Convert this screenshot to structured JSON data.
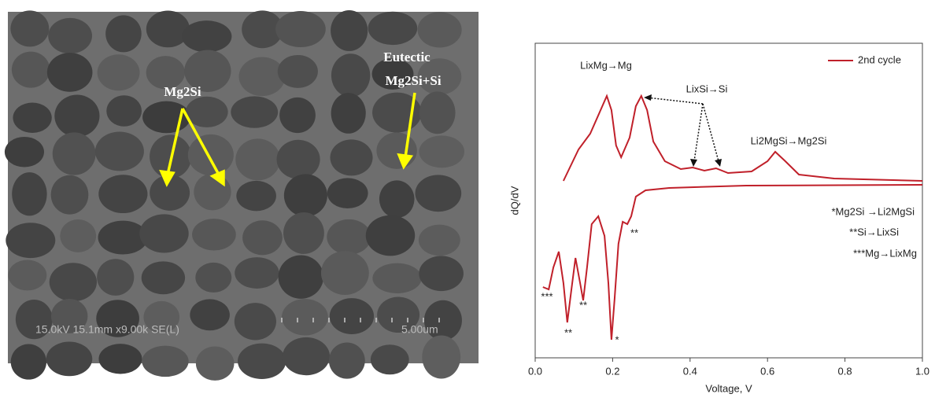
{
  "image": {
    "labels": [
      "Mg2Si",
      "Eutectic",
      "Mg2Si+Si"
    ],
    "info": "15.0kV 15.1mm x9.00k SE(L)",
    "scale": "5.00um"
  },
  "chart_data": {
    "type": "line",
    "xlabel": "Voltage, V",
    "ylabel": "dQ/dV",
    "xlim": [
      0,
      1
    ],
    "ylim": [
      0,
      100
    ],
    "xticks": [
      {
        "value": 0,
        "label": "0.0"
      },
      0.2,
      0.4,
      0.6,
      0.8,
      {
        "value": 1,
        "label": "1.0"
      }
    ],
    "legend": "upper right",
    "series": [
      {
        "name": "2nd cycle",
        "color": "#c0202a",
        "x": [
          0.02,
          0.035,
          0.047,
          0.061,
          0.073,
          0.083,
          0.093,
          0.104,
          0.116,
          0.124,
          0.134,
          0.146,
          0.163,
          0.179,
          0.189,
          0.197,
          0.205,
          0.215,
          0.226,
          0.238,
          0.248,
          0.26,
          0.285,
          0.346,
          0.545,
          1.0,
          null,
          0.073,
          0.112,
          0.142,
          0.169,
          0.185,
          0.197,
          0.209,
          0.222,
          0.244,
          0.26,
          0.274,
          0.289,
          0.305,
          0.335,
          0.376,
          0.407,
          0.437,
          0.467,
          0.498,
          0.559,
          0.6,
          0.62,
          0.646,
          0.681,
          0.772,
          1.0
        ],
        "values": [
          22.5,
          21.75,
          28.75,
          33.75,
          23.75,
          11.25,
          21.25,
          31.75,
          23.75,
          18.25,
          28.75,
          42.5,
          45,
          38.75,
          23.75,
          5.75,
          18.75,
          36.25,
          43.25,
          42.5,
          45,
          51.25,
          53.25,
          54,
          54.75,
          55,
          null,
          56.25,
          66.25,
          71.25,
          78.75,
          83.25,
          78.75,
          67.5,
          63.75,
          70,
          80,
          83.25,
          78.75,
          68.75,
          62.5,
          60,
          60.5,
          59.5,
          60.25,
          58.75,
          59.25,
          62.5,
          65.5,
          62.5,
          58.25,
          57,
          56.25
        ]
      }
    ],
    "annotations": [
      "LixMg→Mg",
      "LixSi→Si",
      "Li2MgSi→Mg2Si",
      "*Mg2Si →Li2MgSi",
      "**Si→LixSi",
      "***Mg→LixMg",
      "***",
      "**",
      "**",
      "*",
      "**"
    ]
  }
}
